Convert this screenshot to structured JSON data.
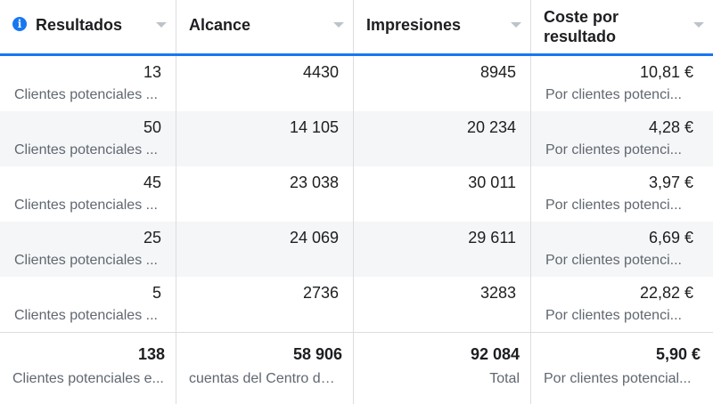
{
  "header": {
    "columns": [
      {
        "label": "Resultados"
      },
      {
        "label": "Alcance"
      },
      {
        "label": "Impresiones"
      },
      {
        "label_line1": "Coste por",
        "label_line2": "resultado"
      }
    ]
  },
  "rows": [
    {
      "results": "13",
      "results_sub": "Clientes potenciales ...",
      "reach": "4430",
      "impressions": "8945",
      "cost": "10,81 €",
      "cost_sub": "Por clientes potenci..."
    },
    {
      "results": "50",
      "results_sub": "Clientes potenciales ...",
      "reach": "14 105",
      "impressions": "20 234",
      "cost": "4,28 €",
      "cost_sub": "Por clientes potenci..."
    },
    {
      "results": "45",
      "results_sub": "Clientes potenciales ...",
      "reach": "23 038",
      "impressions": "30 011",
      "cost": "3,97 €",
      "cost_sub": "Por clientes potenci..."
    },
    {
      "results": "25",
      "results_sub": "Clientes potenciales ...",
      "reach": "24 069",
      "impressions": "29 611",
      "cost": "6,69 €",
      "cost_sub": "Por clientes potenci..."
    },
    {
      "results": "5",
      "results_sub": "Clientes potenciales ...",
      "reach": "2736",
      "impressions": "3283",
      "cost": "22,82 €",
      "cost_sub": "Por clientes potenci..."
    }
  ],
  "total": {
    "results": "138",
    "results_sub": "Clientes potenciales e...",
    "reach": "58 906",
    "reach_sub": "cuentas del Centro de ...",
    "impressions": "92 084",
    "impressions_sub": "Total",
    "cost": "5,90 €",
    "cost_sub": "Por clientes potencial..."
  },
  "icons": {
    "info": "info-icon",
    "sort": "sort-caret-icon"
  },
  "colors": {
    "accent": "#1877f2",
    "alt_row": "#f5f6f7",
    "sub_text": "#606770"
  }
}
